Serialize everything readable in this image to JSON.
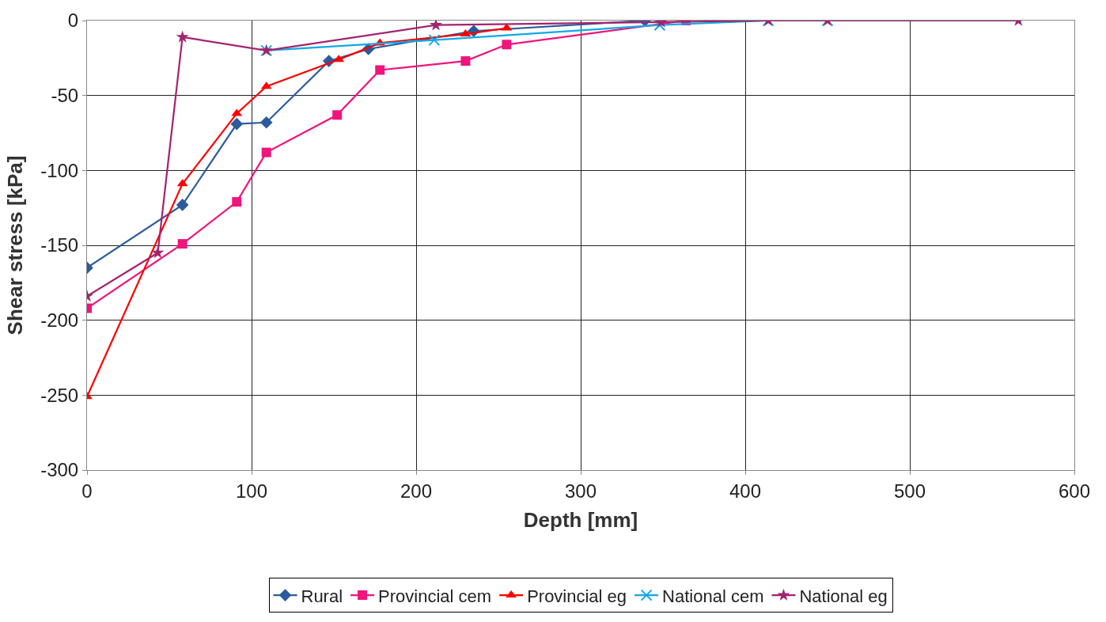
{
  "chart_data": {
    "type": "line",
    "xlabel": "Depth [mm]",
    "ylabel": "Shear stress [kPa]",
    "xlim": [
      0,
      600
    ],
    "xticks": [
      0,
      100,
      200,
      300,
      400,
      500,
      600
    ],
    "ylim": [
      -300,
      0
    ],
    "yticks": [
      -300,
      -250,
      -200,
      -150,
      -100,
      -50,
      0
    ],
    "grid": true,
    "legend": "bottom",
    "series": [
      {
        "name": "Rural",
        "color": "#2b5b9c",
        "marker": "diamond",
        "x": [
          0,
          58,
          91,
          109,
          147,
          171,
          235,
          339
        ],
        "values": [
          -165,
          -123,
          -69,
          -68,
          -27,
          -19,
          -7,
          0
        ]
      },
      {
        "name": "Provincial cem",
        "color": "#f0147c",
        "marker": "square",
        "x": [
          0,
          58,
          91,
          109,
          152,
          178,
          230,
          255,
          364
        ],
        "values": [
          -192,
          -149,
          -121,
          -88,
          -63,
          -33,
          -27,
          -16,
          0
        ]
      },
      {
        "name": "Provincial eg",
        "color": "#ff0000",
        "marker": "triangle",
        "x": [
          0,
          58,
          91,
          109,
          153,
          178,
          230,
          255
        ],
        "values": [
          -251,
          -109,
          -62,
          -44,
          -26,
          -15,
          -9,
          -5
        ]
      },
      {
        "name": "National cem",
        "color": "#10a8e8",
        "marker": "cross",
        "x": [
          109,
          211,
          348,
          414,
          450
        ],
        "values": [
          -20,
          -13,
          -3,
          0,
          0
        ]
      },
      {
        "name": "National eg",
        "color": "#a3236f",
        "marker": "star",
        "x": [
          0,
          43,
          58,
          109,
          212,
          349,
          414,
          450,
          566
        ],
        "values": [
          -184,
          -155,
          -11,
          -20,
          -3,
          -1,
          0,
          0,
          0
        ]
      }
    ]
  }
}
